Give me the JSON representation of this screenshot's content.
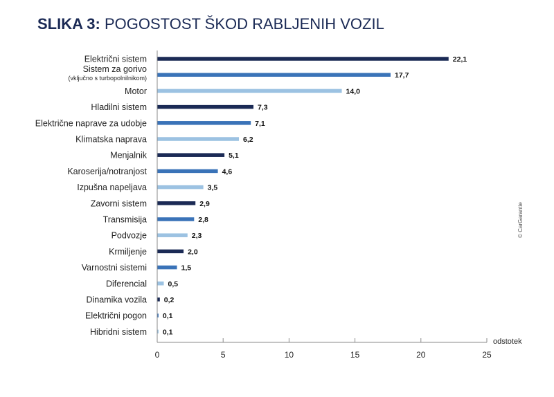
{
  "title": {
    "lead": "SLIKA 3:",
    "rest": "POGOSTOST ŠKOD RABLJENIH VOZIL"
  },
  "watermark": "© CarGarantie",
  "colors": {
    "dark": "#1b2a55",
    "mid": "#3a73b8",
    "light": "#9cc2e2"
  },
  "chart_data": {
    "type": "bar",
    "orientation": "horizontal",
    "title": "SLIKA 3: POGOSTOST ŠKOD RABLJENIH VOZIL",
    "xlabel": "odstotek",
    "xlim": [
      0,
      25
    ],
    "xticks": [
      "0",
      "5",
      "10",
      "15",
      "20",
      "25"
    ],
    "grid": false,
    "categories": [
      {
        "label": "Električni sistem",
        "sub": "",
        "value": 22.1,
        "display": "22,1",
        "shade": "dark"
      },
      {
        "label": "Sistem za gorivo",
        "sub": "(vključno s turbopolnilnikom)",
        "value": 17.7,
        "display": "17,7",
        "shade": "mid"
      },
      {
        "label": "Motor",
        "sub": "",
        "value": 14.0,
        "display": "14,0",
        "shade": "light"
      },
      {
        "label": "Hladilni sistem",
        "sub": "",
        "value": 7.3,
        "display": "7,3",
        "shade": "dark"
      },
      {
        "label": "Električne naprave za udobje",
        "sub": "",
        "value": 7.1,
        "display": "7,1",
        "shade": "mid"
      },
      {
        "label": "Klimatska naprava",
        "sub": "",
        "value": 6.2,
        "display": "6,2",
        "shade": "light"
      },
      {
        "label": "Menjalnik",
        "sub": "",
        "value": 5.1,
        "display": "5,1",
        "shade": "dark"
      },
      {
        "label": "Karoserija/notranjost",
        "sub": "",
        "value": 4.6,
        "display": "4,6",
        "shade": "mid"
      },
      {
        "label": "Izpušna napeljava",
        "sub": "",
        "value": 3.5,
        "display": "3,5",
        "shade": "light"
      },
      {
        "label": "Zavorni sistem",
        "sub": "",
        "value": 2.9,
        "display": "2,9",
        "shade": "dark"
      },
      {
        "label": "Transmisija",
        "sub": "",
        "value": 2.8,
        "display": "2,8",
        "shade": "mid"
      },
      {
        "label": "Podvozje",
        "sub": "",
        "value": 2.3,
        "display": "2,3",
        "shade": "light"
      },
      {
        "label": "Krmiljenje",
        "sub": "",
        "value": 2.0,
        "display": "2,0",
        "shade": "dark"
      },
      {
        "label": "Varnostni sistemi",
        "sub": "",
        "value": 1.5,
        "display": "1,5",
        "shade": "mid"
      },
      {
        "label": "Diferencial",
        "sub": "",
        "value": 0.5,
        "display": "0,5",
        "shade": "light"
      },
      {
        "label": "Dinamika vozila",
        "sub": "",
        "value": 0.2,
        "display": "0,2",
        "shade": "dark"
      },
      {
        "label": "Električni pogon",
        "sub": "",
        "value": 0.1,
        "display": "0,1",
        "shade": "mid"
      },
      {
        "label": "Hibridni sistem",
        "sub": "",
        "value": 0.1,
        "display": "0,1",
        "shade": "light"
      }
    ]
  }
}
